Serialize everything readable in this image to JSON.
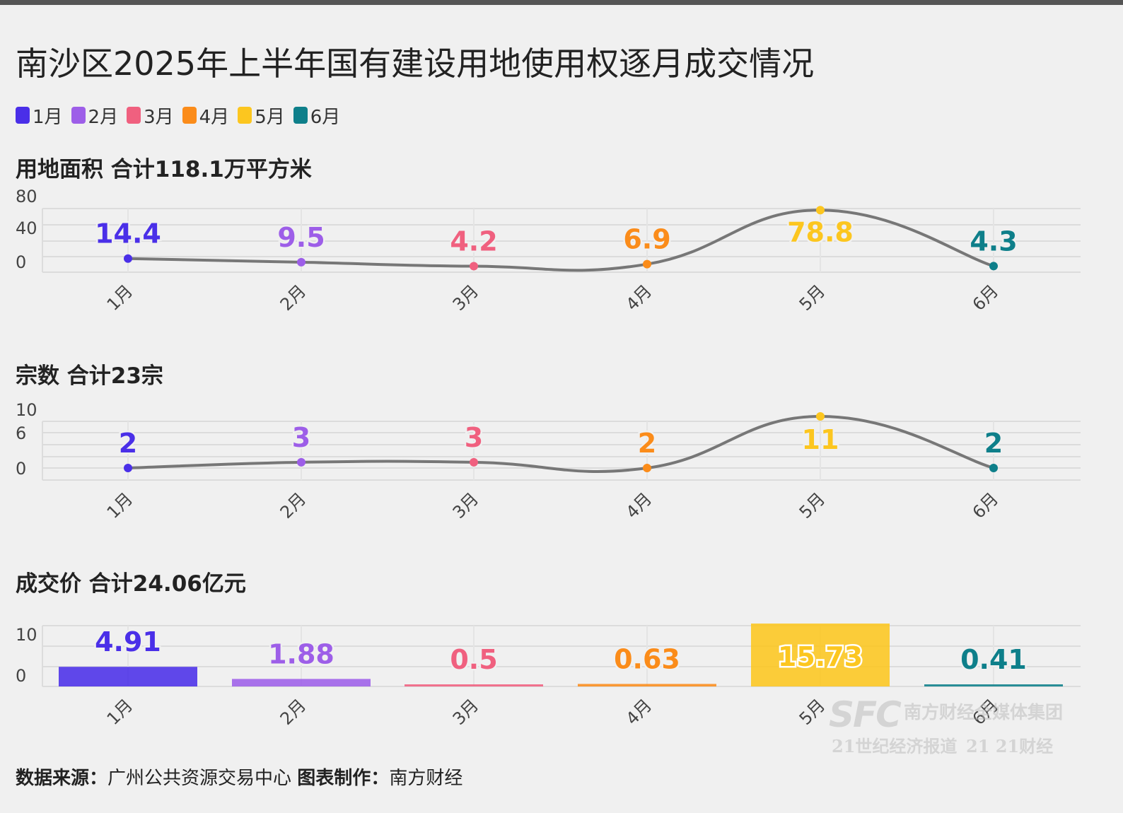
{
  "title": "南沙区2025年上半年国有建设用地使用权逐月成交情况",
  "legend": [
    {
      "label": "1月",
      "color": "#4a2fe8"
    },
    {
      "label": "2月",
      "color": "#9d5ee8"
    },
    {
      "label": "3月",
      "color": "#f0607f"
    },
    {
      "label": "4月",
      "color": "#fb8c1a"
    },
    {
      "label": "5月",
      "color": "#fcc61f"
    },
    {
      "label": "6月",
      "color": "#0e7f8a"
    }
  ],
  "chart_data": [
    {
      "type": "line",
      "title": "用地面积 合计118.1万平方米",
      "categories": [
        "1月",
        "2月",
        "3月",
        "4月",
        "5月",
        "6月"
      ],
      "values": [
        14.4,
        9.5,
        4.2,
        6.9,
        78.8,
        4.3
      ],
      "labels": [
        "14.4",
        "9.5",
        "4.2",
        "6.9",
        "78.8",
        "4.3"
      ],
      "y_ticks": [
        "80",
        "40",
        "0"
      ],
      "ylim": [
        0,
        80
      ],
      "grid": true
    },
    {
      "type": "line",
      "title": "宗数 合计23宗",
      "categories": [
        "1月",
        "2月",
        "3月",
        "4月",
        "5月",
        "6月"
      ],
      "values": [
        2,
        3,
        3,
        2,
        11,
        2
      ],
      "labels": [
        "2",
        "3",
        "3",
        "2",
        "11",
        "2"
      ],
      "y_ticks": [
        "10",
        "6",
        "0"
      ],
      "ylim": [
        2,
        11
      ],
      "grid": true
    },
    {
      "type": "bar",
      "title": "成交价 合计24.06亿元",
      "categories": [
        "1月",
        "2月",
        "3月",
        "4月",
        "5月",
        "6月"
      ],
      "values": [
        4.91,
        1.88,
        0.5,
        0.63,
        15.73,
        0.41
      ],
      "labels": [
        "4.91",
        "1.88",
        "0.5",
        "0.63",
        "15.73",
        "0.41"
      ],
      "y_ticks": [
        "10",
        "0"
      ],
      "ylim": [
        0,
        15.73
      ],
      "grid": true
    }
  ],
  "footer": {
    "source_label": "数据来源：",
    "source": "广州公共资源交易中心",
    "maker_label": "图表制作：",
    "maker": "南方财经"
  },
  "watermark": {
    "logo": "SFC",
    "name": "南方财经全媒体集团",
    "sub1": "21世纪经济报道",
    "sub2": "21 21财经"
  }
}
